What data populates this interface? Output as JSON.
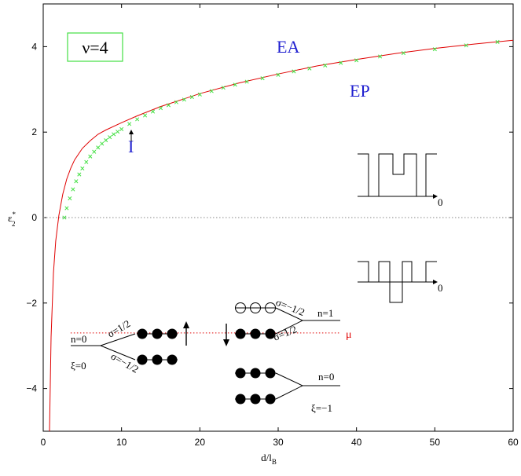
{
  "chart_data": {
    "type": "line",
    "xlabel": "d/l",
    "xlabel_sub": "B",
    "ylabel": "ε",
    "ylabel_sup": "*",
    "ylabel_sub": "2",
    "xlim": [
      0,
      60
    ],
    "ylim": [
      -5,
      5
    ],
    "xticks": [
      "0",
      "10",
      "20",
      "30",
      "40",
      "50",
      "60"
    ],
    "yticks": [
      "−4",
      "−2",
      "0",
      "2",
      "4"
    ],
    "grid": false,
    "series": [
      {
        "style": "solid",
        "color": "#e00000",
        "x": [
          0.8,
          1.0,
          1.3,
          1.6,
          2.0,
          2.5,
          3.0,
          3.5,
          4.0,
          5.0,
          6.0,
          7.0,
          8.0,
          10.0,
          12.0,
          15.0,
          18.0,
          20.0,
          25.0,
          30.0,
          35.0,
          40.0,
          45.0,
          50.0,
          55.0,
          60.0
        ],
        "y": [
          -5.0,
          -2.8,
          -1.3,
          -0.55,
          0.05,
          0.55,
          0.9,
          1.15,
          1.35,
          1.62,
          1.8,
          1.95,
          2.05,
          2.22,
          2.38,
          2.6,
          2.78,
          2.9,
          3.15,
          3.36,
          3.55,
          3.7,
          3.84,
          3.96,
          4.06,
          4.15
        ]
      },
      {
        "style": "marker-x",
        "color": "#44e044",
        "x": [
          2.7,
          3.0,
          3.4,
          3.8,
          4.2,
          4.6,
          5.0,
          5.5,
          6.0,
          6.5,
          7.0,
          7.5,
          8.0,
          8.5,
          9.0,
          9.5,
          10.0,
          11.0,
          12.0,
          13.0,
          14.0,
          15.0,
          16.0,
          17.0,
          18.0,
          19.0,
          20.0,
          21.5,
          23.0,
          24.5,
          26.0,
          28.0,
          30.0,
          32.0,
          34.0,
          36.0,
          38.0,
          40.0,
          43.0,
          46.0,
          50.0,
          54.0,
          58.0
        ],
        "y": [
          0.0,
          0.22,
          0.45,
          0.66,
          0.85,
          1.01,
          1.15,
          1.3,
          1.43,
          1.54,
          1.64,
          1.73,
          1.81,
          1.88,
          1.95,
          2.01,
          2.07,
          2.19,
          2.3,
          2.39,
          2.48,
          2.56,
          2.63,
          2.7,
          2.76,
          2.82,
          2.88,
          2.96,
          3.04,
          3.11,
          3.18,
          3.26,
          3.34,
          3.42,
          3.49,
          3.56,
          3.62,
          3.68,
          3.77,
          3.85,
          3.94,
          4.03,
          4.11
        ]
      },
      {
        "style": "dotted",
        "color": "#888888",
        "x": [
          0,
          60
        ],
        "y": [
          0,
          0
        ]
      },
      {
        "style": "dotted",
        "color": "#e00000",
        "x": [
          3.5,
          38
        ],
        "y": [
          -2.7,
          -2.7
        ]
      }
    ],
    "annotations": {
      "nu": "ν=4",
      "ea": "EA",
      "ep": "EP",
      "i": "I",
      "mu": "μ",
      "zero1": "0",
      "zero2": "0",
      "n0_left": "n=0",
      "xi0": "ξ=0",
      "sig_left_up": "σ=1/2",
      "sig_left_down": "σ=−1/2",
      "n1": "n=1",
      "sig_right_up": "σ=−1/2",
      "sig_right_down": "σ=1/2",
      "n0_right": "n=0",
      "xim1": "ξ=−1"
    }
  }
}
